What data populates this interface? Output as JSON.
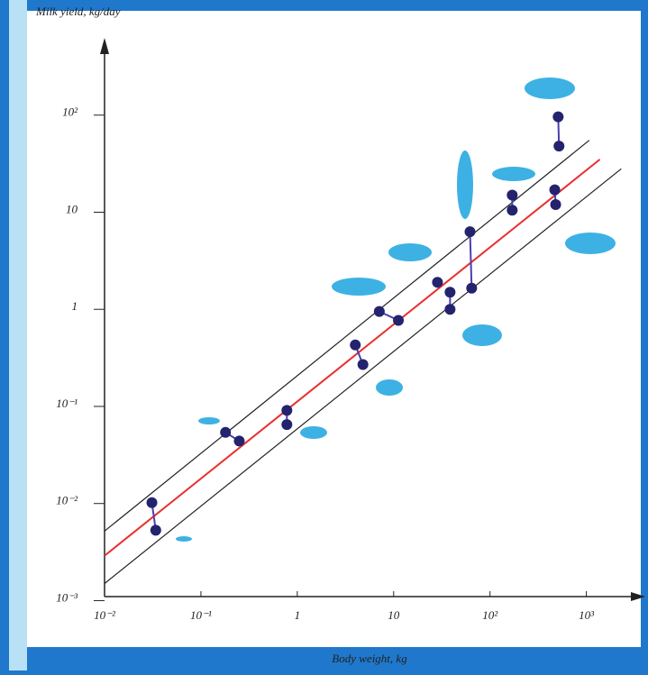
{
  "chart_data": {
    "type": "scatter",
    "y_label": "Milk yield, kg/day",
    "x_label": "Body weight, kg",
    "log_x": true,
    "log_y": true,
    "xlim": [
      0.01,
      4000
    ],
    "ylim": [
      0.0011,
      1000
    ],
    "xticks": [
      {
        "value": 0.01,
        "label": "10⁻²"
      },
      {
        "value": 0.1,
        "label": "10⁻¹"
      },
      1,
      10,
      {
        "value": 100,
        "label": "10²"
      },
      {
        "value": 1000,
        "label": "10³"
      }
    ],
    "yticks": [
      {
        "value": 0.001,
        "label": "10⁻³"
      },
      {
        "value": 0.01,
        "label": "10⁻²"
      },
      {
        "value": 0.1,
        "label": "10⁻¹"
      },
      1,
      10,
      {
        "value": 100,
        "label": "10²"
      }
    ],
    "color": "#23236e",
    "series": [
      {
        "x": [
          0.031,
          0.034
        ],
        "values": [
          0.0102,
          0.0053
        ]
      },
      {
        "x": [
          0.18,
          0.25
        ],
        "values": [
          0.054,
          0.044
        ]
      },
      {
        "x": [
          0.78,
          0.78
        ],
        "values": [
          0.091,
          0.065
        ]
      },
      {
        "x": [
          4.0,
          4.8
        ],
        "values": [
          0.43,
          0.27
        ]
      },
      {
        "x": [
          7.1,
          11.2
        ],
        "values": [
          0.95,
          0.77
        ]
      },
      {
        "x": [
          28.5
        ],
        "values": [
          1.9
        ]
      },
      {
        "x": [
          38.5,
          38.5
        ],
        "values": [
          1.5,
          1.0
        ]
      },
      {
        "x": [
          62,
          64.5
        ],
        "values": [
          6.3,
          1.65
        ]
      },
      {
        "x": [
          170,
          170
        ],
        "values": [
          15,
          10.5
        ]
      },
      {
        "x": [
          470,
          480
        ],
        "values": [
          17,
          12
        ]
      },
      {
        "x": [
          510,
          520
        ],
        "values": [
          96,
          48
        ]
      }
    ],
    "fit_lines": [
      {
        "color": "#e8312f",
        "x": [
          0.01,
          1380
        ],
        "values": [
          0.0029,
          35
        ]
      },
      {
        "color": "#222222",
        "x": [
          0.01,
          1070
        ],
        "values": [
          0.0052,
          55
        ]
      },
      {
        "color": "#222222",
        "x": [
          0.01,
          2300
        ],
        "values": [
          0.0015,
          28
        ]
      }
    ]
  }
}
